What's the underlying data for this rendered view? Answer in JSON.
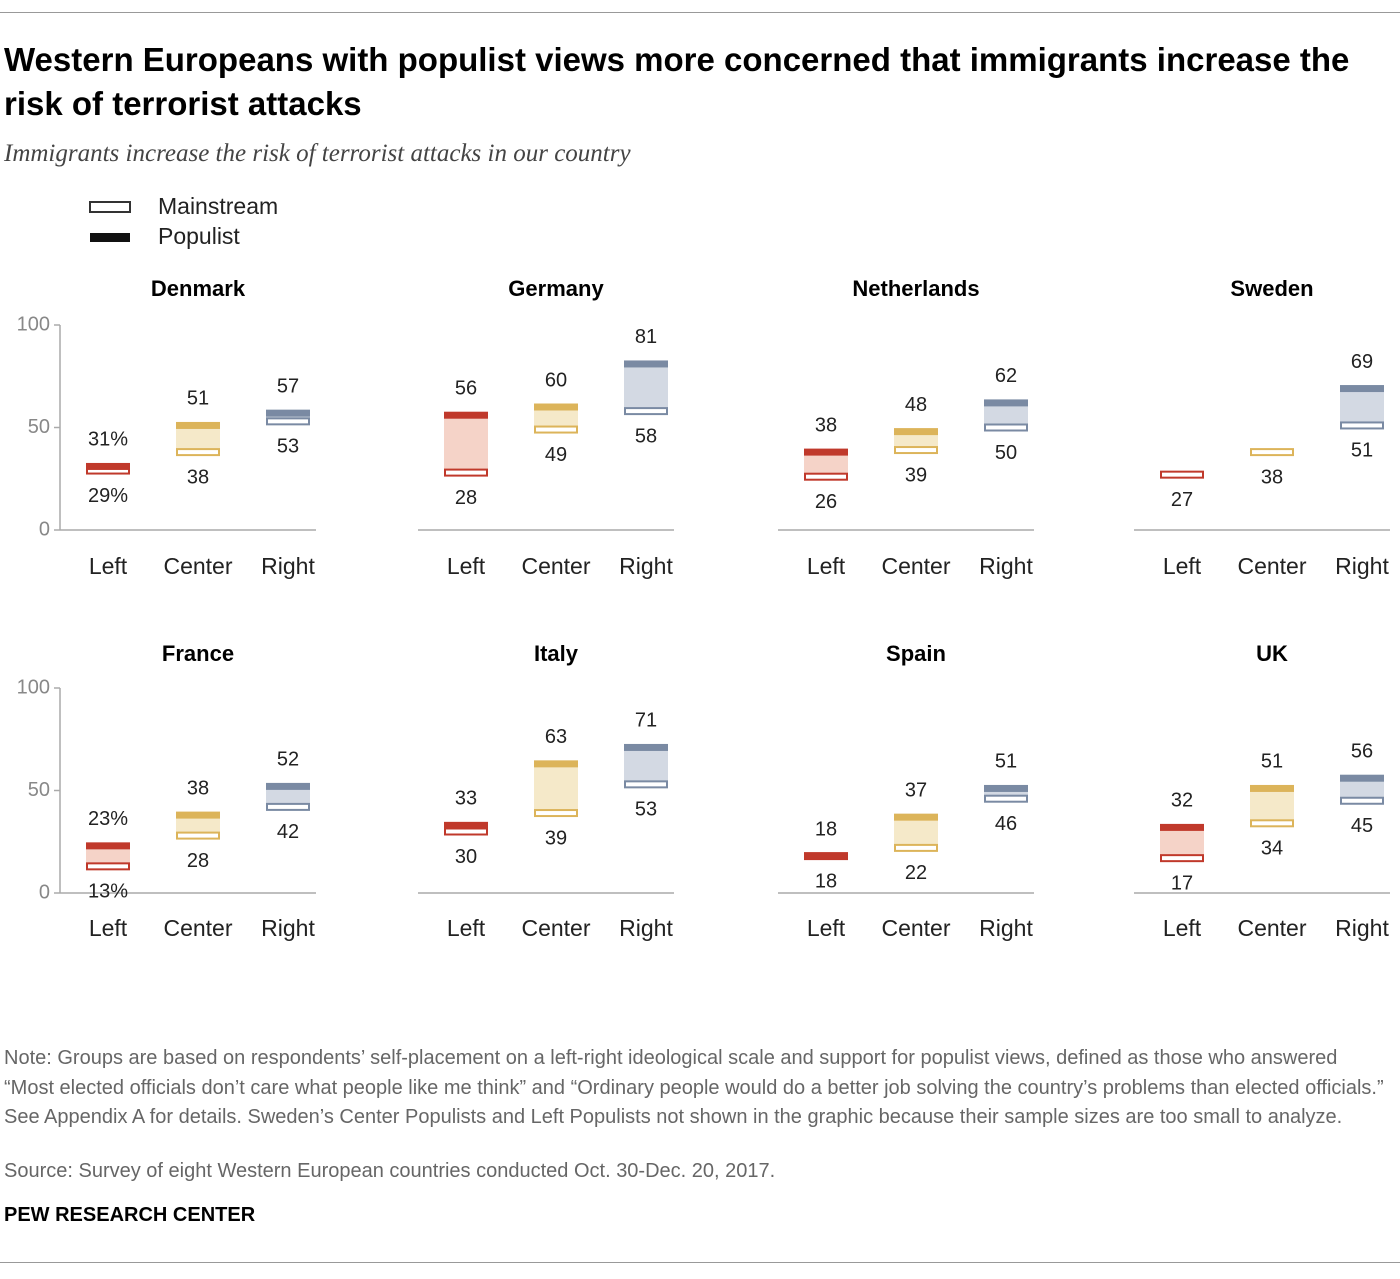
{
  "title": "Western Europeans with populist views more concerned that immigrants increase the risk of terrorist attacks",
  "subtitle": "Immigrants increase the risk of terrorist attacks in our country",
  "note": "Note: Groups are based on respondents’ self-placement on a left-right ideological scale and support for populist views, defined as those who answered “Most elected officials don’t care what people like me think” and “Ordinary people would do a better job solving the country’s problems than elected officials.” See Appendix A for details. Sweden’s Center Populists and Left Populists not shown in the graphic because their sample sizes are too small to analyze.",
  "source": "Source: Survey of eight Western European countries conducted Oct. 30-Dec. 20, 2017.",
  "brand": "PEW RESEARCH CENTER",
  "chart_data": [
    {
      "type": "range",
      "title": "Denmark",
      "categories": [
        "Left",
        "Center",
        "Right"
      ],
      "colors": [
        "#c0392b",
        "#dcb45a",
        "#7a8aa3"
      ],
      "light_colors": [
        "#f5d3c8",
        "#f5e9c9",
        "#d3d9e3"
      ],
      "ylim": [
        0,
        100
      ],
      "yticks": [
        0,
        50,
        100
      ],
      "series": [
        {
          "name": "Mainstream",
          "values": [
            29,
            38,
            53
          ],
          "value_labels": [
            "29%",
            "38",
            "53"
          ]
        },
        {
          "name": "Populist",
          "values": [
            31,
            51,
            57
          ],
          "value_labels": [
            "31%",
            "51",
            "57"
          ]
        }
      ]
    },
    {
      "type": "range",
      "title": "Germany",
      "categories": [
        "Left",
        "Center",
        "Right"
      ],
      "colors": [
        "#c0392b",
        "#dcb45a",
        "#7a8aa3"
      ],
      "light_colors": [
        "#f5d3c8",
        "#f5e9c9",
        "#d3d9e3"
      ],
      "ylim": [
        0,
        100
      ],
      "series": [
        {
          "name": "Mainstream",
          "values": [
            28,
            49,
            58
          ]
        },
        {
          "name": "Populist",
          "values": [
            56,
            60,
            81
          ]
        }
      ]
    },
    {
      "type": "range",
      "title": "Netherlands",
      "categories": [
        "Left",
        "Center",
        "Right"
      ],
      "colors": [
        "#c0392b",
        "#dcb45a",
        "#7a8aa3"
      ],
      "light_colors": [
        "#f5d3c8",
        "#f5e9c9",
        "#d3d9e3"
      ],
      "ylim": [
        0,
        100
      ],
      "series": [
        {
          "name": "Mainstream",
          "values": [
            26,
            39,
            50
          ]
        },
        {
          "name": "Populist",
          "values": [
            38,
            48,
            62
          ]
        }
      ]
    },
    {
      "type": "range",
      "title": "Sweden",
      "categories": [
        "Left",
        "Center",
        "Right"
      ],
      "colors": [
        "#c0392b",
        "#dcb45a",
        "#7a8aa3"
      ],
      "light_colors": [
        "#f5d3c8",
        "#f5e9c9",
        "#d3d9e3"
      ],
      "ylim": [
        0,
        100
      ],
      "series": [
        {
          "name": "Mainstream",
          "values": [
            27,
            38,
            51
          ]
        },
        {
          "name": "Populist",
          "values": [
            null,
            null,
            69
          ]
        }
      ]
    },
    {
      "type": "range",
      "title": "France",
      "categories": [
        "Left",
        "Center",
        "Right"
      ],
      "colors": [
        "#c0392b",
        "#dcb45a",
        "#7a8aa3"
      ],
      "light_colors": [
        "#f5d3c8",
        "#f5e9c9",
        "#d3d9e3"
      ],
      "ylim": [
        0,
        100
      ],
      "yticks": [
        0,
        50,
        100
      ],
      "series": [
        {
          "name": "Mainstream",
          "values": [
            13,
            28,
            42
          ],
          "value_labels": [
            "13%",
            "28",
            "42"
          ]
        },
        {
          "name": "Populist",
          "values": [
            23,
            38,
            52
          ],
          "value_labels": [
            "23%",
            "38",
            "52"
          ]
        }
      ]
    },
    {
      "type": "range",
      "title": "Italy",
      "categories": [
        "Left",
        "Center",
        "Right"
      ],
      "colors": [
        "#c0392b",
        "#dcb45a",
        "#7a8aa3"
      ],
      "light_colors": [
        "#f5d3c8",
        "#f5e9c9",
        "#d3d9e3"
      ],
      "ylim": [
        0,
        100
      ],
      "series": [
        {
          "name": "Mainstream",
          "values": [
            30,
            39,
            53
          ]
        },
        {
          "name": "Populist",
          "values": [
            33,
            63,
            71
          ]
        }
      ]
    },
    {
      "type": "range",
      "title": "Spain",
      "categories": [
        "Left",
        "Center",
        "Right"
      ],
      "colors": [
        "#c0392b",
        "#dcb45a",
        "#7a8aa3"
      ],
      "light_colors": [
        "#f5d3c8",
        "#f5e9c9",
        "#d3d9e3"
      ],
      "ylim": [
        0,
        100
      ],
      "series": [
        {
          "name": "Mainstream",
          "values": [
            18,
            22,
            46
          ]
        },
        {
          "name": "Populist",
          "values": [
            18,
            37,
            51
          ]
        }
      ]
    },
    {
      "type": "range",
      "title": "UK",
      "categories": [
        "Left",
        "Center",
        "Right"
      ],
      "colors": [
        "#c0392b",
        "#dcb45a",
        "#7a8aa3"
      ],
      "light_colors": [
        "#f5d3c8",
        "#f5e9c9",
        "#d3d9e3"
      ],
      "ylim": [
        0,
        100
      ],
      "series": [
        {
          "name": "Mainstream",
          "values": [
            17,
            34,
            45
          ]
        },
        {
          "name": "Populist",
          "values": [
            32,
            51,
            56
          ]
        }
      ]
    }
  ]
}
